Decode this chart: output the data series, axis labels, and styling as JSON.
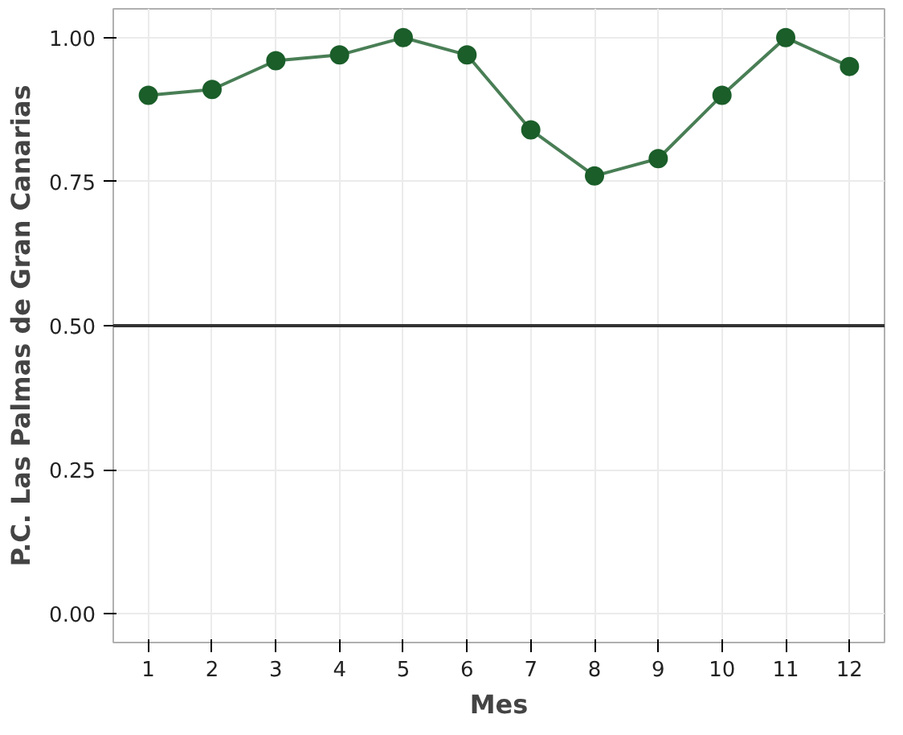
{
  "chart_data": {
    "type": "line",
    "xlabel": "Mes",
    "ylabel": "P.C. Las Palmas de Gran Canarias",
    "x": [
      1,
      2,
      3,
      4,
      5,
      6,
      7,
      8,
      9,
      10,
      11,
      12
    ],
    "series": [
      {
        "color": "#1b5e2a",
        "values": [
          0.9,
          0.91,
          0.96,
          0.97,
          1.0,
          0.97,
          0.84,
          0.76,
          0.79,
          0.9,
          1.0,
          0.95
        ]
      }
    ],
    "xlim": [
      0.45,
      12.55
    ],
    "xticks": [
      1,
      2,
      3,
      4,
      5,
      6,
      7,
      8,
      9,
      10,
      11,
      12
    ],
    "ylim": [
      -0.05,
      1.05
    ],
    "yticks": [
      {
        "value": 0,
        "label": "0.00"
      },
      {
        "value": 0.25,
        "label": "0.25"
      },
      {
        "value": 0.5,
        "label": "0.50"
      },
      {
        "value": 0.75,
        "label": "0.75"
      },
      {
        "value": 1,
        "label": "1.00"
      }
    ],
    "ref_lines": [
      {
        "axis": "y",
        "value": 0.5,
        "color": "#333333"
      }
    ],
    "grid": true,
    "marker": "circle",
    "line_style": "solid"
  }
}
